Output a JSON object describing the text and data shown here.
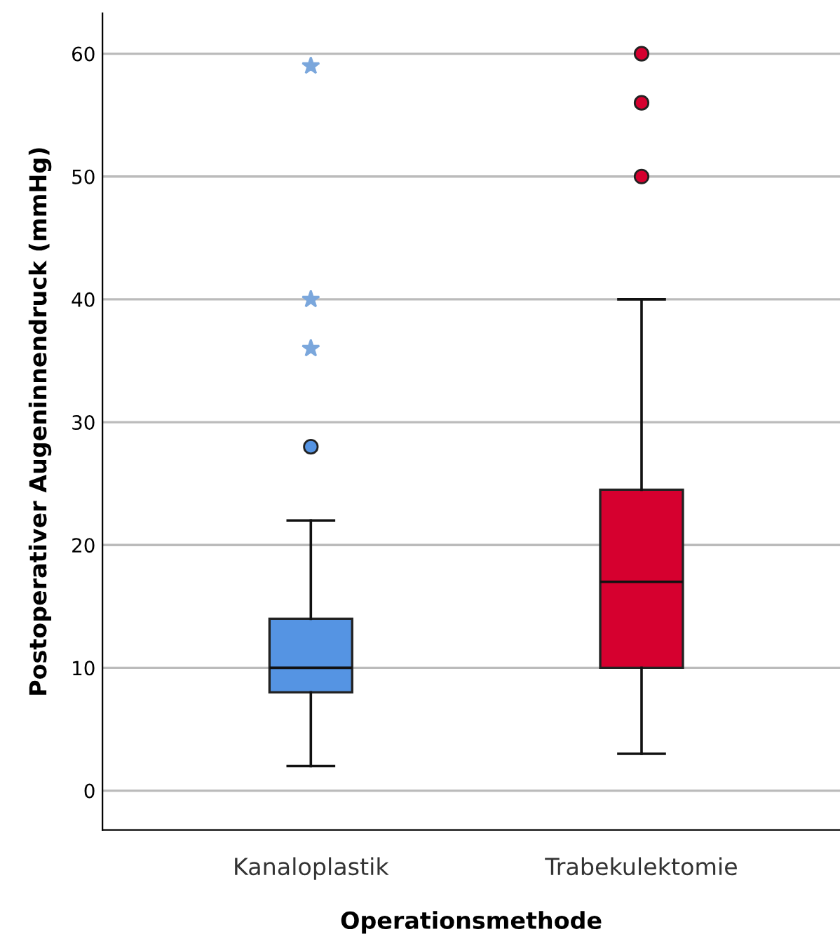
{
  "chart_data": {
    "type": "box",
    "xlabel": "Operationsmethode",
    "ylabel": "Postoperativer Augeninnendruck (mmHg)",
    "categories": [
      "Kanaloplastik",
      "Trabekulektomie"
    ],
    "colors": [
      "#5594e3",
      "#d6002f"
    ],
    "boxes": [
      {
        "low": 2,
        "q1": 8,
        "median": 10,
        "q3": 14,
        "high": 22,
        "outliers": [
          28
        ]
      },
      {
        "low": 3,
        "q1": 10,
        "median": 17,
        "q3": 24.5,
        "high": 40,
        "outliers": [
          50,
          56,
          60
        ]
      }
    ],
    "series": [
      {
        "type": "scatter",
        "x": [
          "Kanaloplastik",
          "Kanaloplastik",
          "Kanaloplastik"
        ],
        "values": [
          59,
          40,
          36
        ],
        "color": "#7ba7dc",
        "marker": "star"
      }
    ],
    "ylim": [
      -3.2,
      63.3
    ],
    "yticks": [
      0,
      10,
      20,
      30,
      40,
      50,
      60
    ],
    "grid": "y"
  }
}
